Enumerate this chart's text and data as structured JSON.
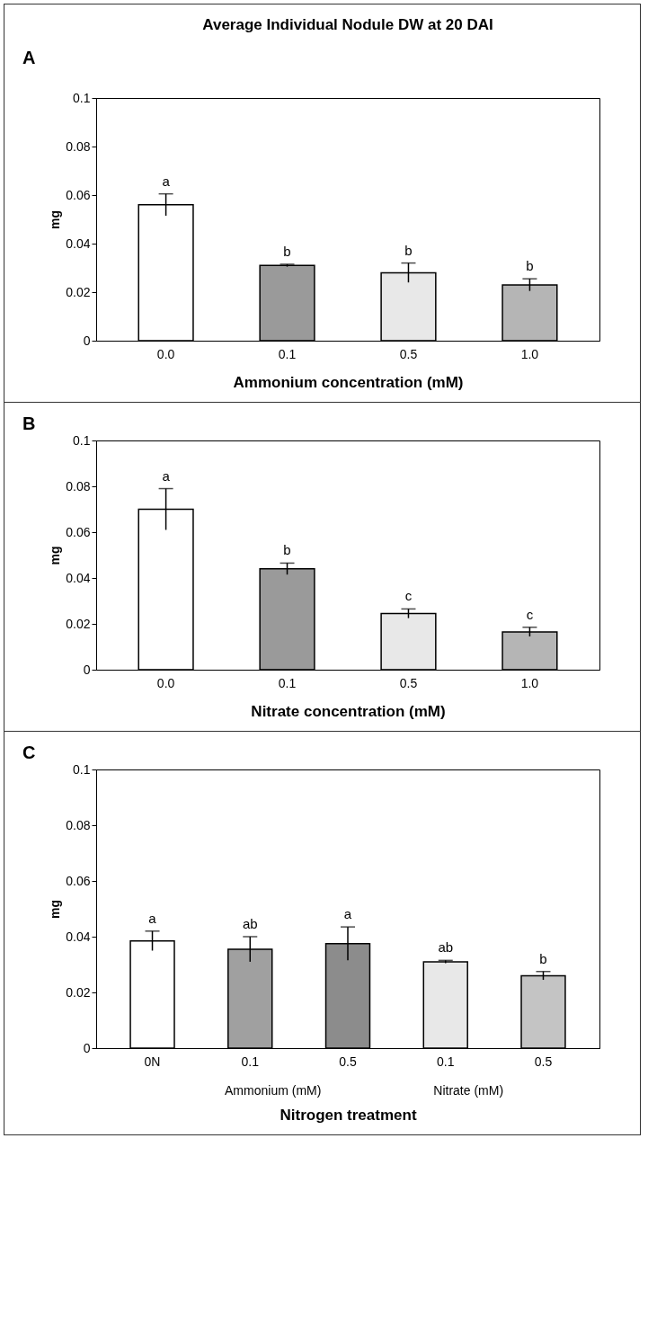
{
  "chart_data": [
    {
      "type": "bar",
      "title": "Average Individual Nodule DW at 20 DAI",
      "xlabel": "Ammonium concentration (mM)",
      "ylabel": "mg",
      "categories": [
        "0.0",
        "0.1",
        "0.5",
        "1.0"
      ],
      "values": [
        0.056,
        0.031,
        0.028,
        0.023
      ],
      "errors": [
        0.0045,
        0.0005,
        0.004,
        0.0025
      ],
      "value_labels": [
        "a",
        "b",
        "b",
        "b"
      ],
      "colors": [
        "#ffffff",
        "#9a9a9a",
        "#e8e8e8",
        "#b5b5b5"
      ],
      "ylim": [
        0,
        0.1
      ],
      "yticks": [
        0,
        0.02,
        0.04,
        0.06,
        0.08,
        0.1
      ],
      "annotations": [
        "A"
      ]
    },
    {
      "type": "bar",
      "xlabel": "Nitrate concentration (mM)",
      "ylabel": "mg",
      "categories": [
        "0.0",
        "0.1",
        "0.5",
        "1.0"
      ],
      "values": [
        0.07,
        0.044,
        0.0245,
        0.0165
      ],
      "errors": [
        0.009,
        0.0025,
        0.002,
        0.002
      ],
      "value_labels": [
        "a",
        "b",
        "c",
        "c"
      ],
      "colors": [
        "#ffffff",
        "#9a9a9a",
        "#e8e8e8",
        "#b5b5b5"
      ],
      "ylim": [
        0,
        0.1
      ],
      "yticks": [
        0,
        0.02,
        0.04,
        0.06,
        0.08,
        0.1
      ],
      "annotations": [
        "B"
      ]
    },
    {
      "type": "bar",
      "xlabel": "Nitrogen treatment",
      "ylabel": "mg",
      "categories": [
        "0N",
        "0.1",
        "0.5",
        "0.1",
        "0.5"
      ],
      "values": [
        0.0385,
        0.0355,
        0.0375,
        0.031,
        0.026
      ],
      "errors": [
        0.0035,
        0.0045,
        0.006,
        0.0005,
        0.0015
      ],
      "value_labels": [
        "a",
        "ab",
        "a",
        "ab",
        "b"
      ],
      "colors": [
        "#ffffff",
        "#a0a0a0",
        "#8c8c8c",
        "#e8e8e8",
        "#c4c4c4"
      ],
      "ylim": [
        0,
        0.1
      ],
      "yticks": [
        0,
        0.02,
        0.04,
        0.06,
        0.08,
        0.1
      ],
      "annotations": [
        "C",
        "Ammonium (mM)",
        "Nitrate (mM)"
      ]
    }
  ]
}
